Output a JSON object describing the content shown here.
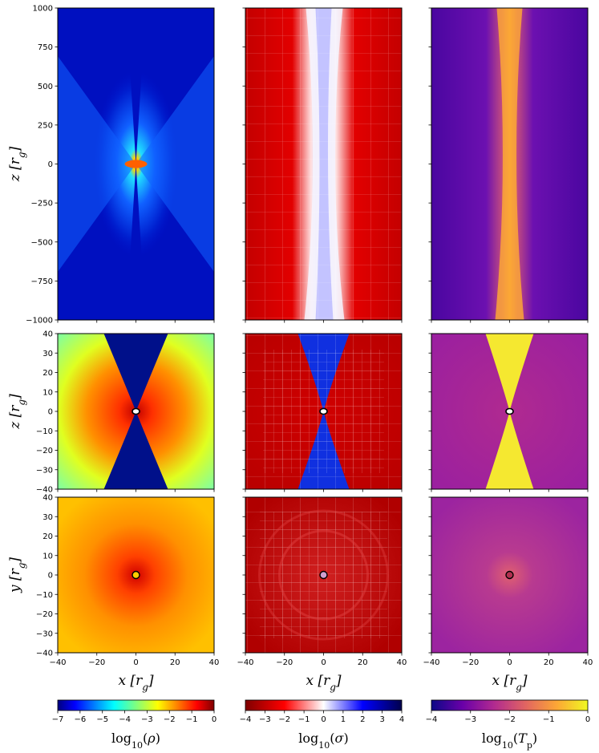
{
  "chart_data": {
    "type": "heatmap",
    "description_free": true,
    "rows": [
      {
        "ylabel": "z [r_g]",
        "ylabel_var": "z",
        "ylim": [
          -1000,
          1000
        ],
        "yticks": [
          "−1000",
          "−750",
          "−500",
          "−250",
          "0",
          "250",
          "500",
          "750",
          "1000"
        ],
        "ytick_values": [
          -1000,
          -750,
          -500,
          -250,
          0,
          250,
          500,
          750,
          1000
        ],
        "xlim": [
          -1000,
          1000
        ]
      },
      {
        "ylabel": "z [r_g]",
        "ylabel_var": "z",
        "ylim": [
          -40,
          40
        ],
        "yticks": [
          "−40",
          "−30",
          "−20",
          "−10",
          "0",
          "10",
          "20",
          "30",
          "40"
        ],
        "ytick_values": [
          -40,
          -30,
          -20,
          -10,
          0,
          10,
          20,
          30,
          40
        ],
        "xlim": [
          -40,
          40
        ]
      },
      {
        "ylabel": "y [r_g]",
        "ylabel_var": "y",
        "ylim": [
          -40,
          40
        ],
        "yticks": [
          "−40",
          "−30",
          "−20",
          "−10",
          "0",
          "10",
          "20",
          "30",
          "40"
        ],
        "ytick_values": [
          -40,
          -30,
          -20,
          -10,
          0,
          10,
          20,
          30,
          40
        ],
        "xlim": [
          -40,
          40
        ]
      }
    ],
    "xlabel": "x [r_g]",
    "xlabel_var": "x",
    "xticks": [
      "−40",
      "−20",
      "0",
      "20",
      "40"
    ],
    "xtick_values": [
      -40,
      -20,
      0,
      20,
      40
    ],
    "columns": [
      {
        "quantity": "log10(ρ)",
        "colormap": "jet",
        "colorbar_range": [
          -7,
          0
        ],
        "colorbar_ticks": [
          "−7",
          "−6",
          "−5",
          "−4",
          "−3",
          "−2",
          "−1",
          "0"
        ],
        "colorbar_tick_values": [
          -7,
          -6,
          -5,
          -4,
          -3,
          -2,
          -1,
          0
        ],
        "colors": [
          "#00007f",
          "#0000ff",
          "#007fff",
          "#00ffff",
          "#7fff7f",
          "#ffff00",
          "#ff7f00",
          "#ff0000",
          "#7f0000"
        ]
      },
      {
        "quantity": "log10(σ)",
        "colormap": "seismic_r",
        "colorbar_range": [
          -4,
          4
        ],
        "colorbar_ticks": [
          "−4",
          "−3",
          "−2",
          "−1",
          "0",
          "1",
          "2",
          "3",
          "4"
        ],
        "colorbar_tick_values": [
          -4,
          -3,
          -2,
          -1,
          0,
          1,
          2,
          3,
          4
        ],
        "colors": [
          "#7f0000",
          "#ff0000",
          "#ffffff",
          "#0000ff",
          "#00004c"
        ]
      },
      {
        "quantity": "log10(T_p)",
        "colormap": "plasma",
        "colorbar_range": [
          -4,
          0
        ],
        "colorbar_ticks": [
          "−4",
          "−3",
          "−2",
          "−1",
          "0"
        ],
        "colorbar_tick_values": [
          -4,
          -3,
          -2,
          -1,
          0
        ],
        "colors": [
          "#0d0887",
          "#6a00a8",
          "#b12a90",
          "#e16462",
          "#fca636",
          "#f0f921"
        ]
      }
    ],
    "colorbar_labels": {
      "rho": {
        "prefix": "log",
        "sub": "10",
        "open": "(",
        "sym": "ρ",
        "close": ")"
      },
      "sigma": {
        "prefix": "log",
        "sub": "10",
        "open": "(",
        "sym": "σ",
        "close": ")"
      },
      "tp": {
        "prefix": "log",
        "sub": "10",
        "open": "(",
        "sym": "T",
        "symsub": "p",
        "close": ")"
      }
    }
  }
}
